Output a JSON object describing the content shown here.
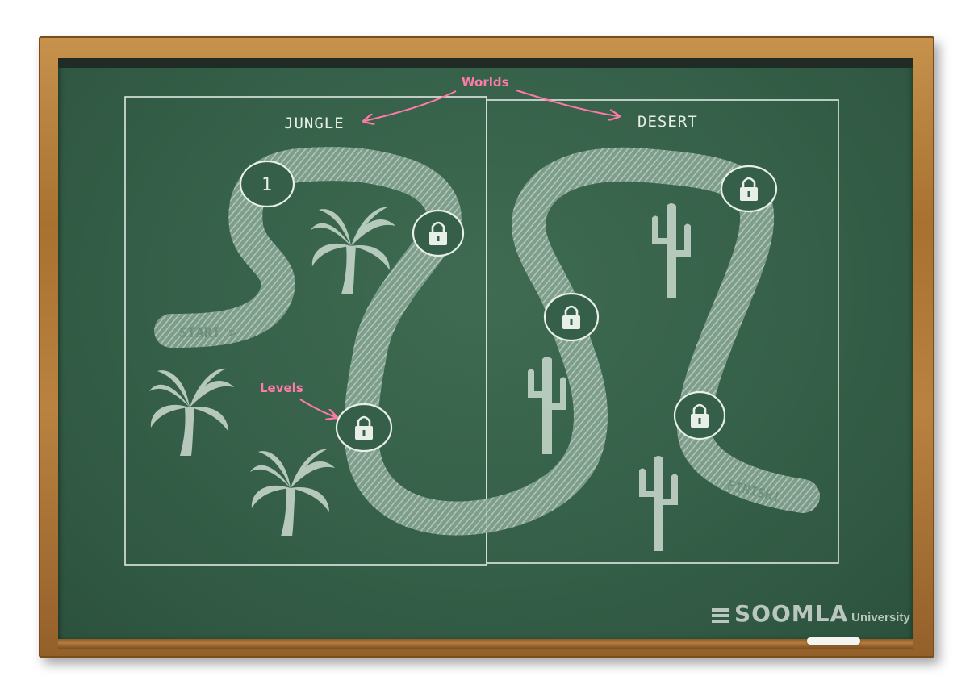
{
  "annotations": {
    "worlds_label": "Worlds",
    "levels_label": "Levels"
  },
  "worlds": [
    {
      "name": "JUNGLE"
    },
    {
      "name": "DESERT"
    }
  ],
  "path_labels": {
    "start": "START >",
    "finish": "FINISH!"
  },
  "levels": [
    {
      "label": "1",
      "state": "unlocked",
      "icon": "none"
    },
    {
      "label": "",
      "state": "locked",
      "icon": "padlock-icon"
    },
    {
      "label": "",
      "state": "locked",
      "icon": "padlock-icon"
    },
    {
      "label": "",
      "state": "locked",
      "icon": "padlock-icon"
    },
    {
      "label": "",
      "state": "locked",
      "icon": "padlock-icon"
    },
    {
      "label": "",
      "state": "locked",
      "icon": "padlock-icon"
    }
  ],
  "brand": {
    "logo_text": "SOOMLA",
    "sub_text": "University"
  },
  "colors": {
    "board": "#355f48",
    "chalk": "#e8efe9",
    "pink_chalk": "#ff7aa8",
    "frame": "#b07a3a"
  }
}
